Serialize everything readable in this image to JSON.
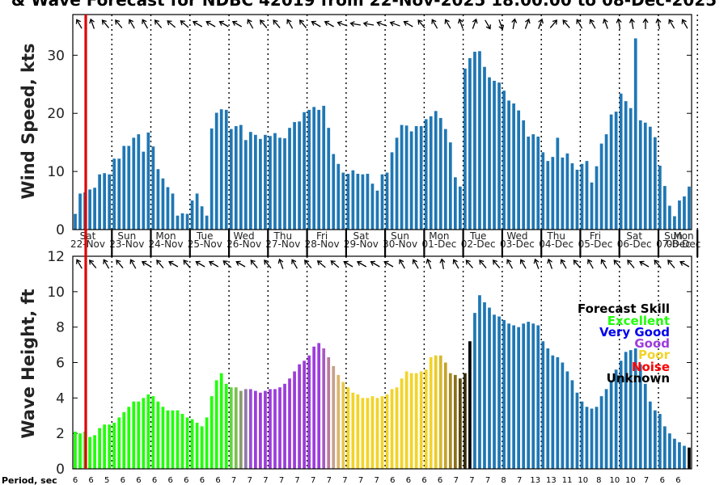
{
  "title": "& Wave Forecast for NDBC 42019 from 22-Nov-2025 18:00:00 to 08-Dec-2025",
  "chart_data": [
    {
      "type": "bar",
      "name": "wind",
      "ylabel": "Wind Speed, kts",
      "ylim": [
        0,
        37
      ],
      "yticks": [
        0,
        10,
        20,
        30
      ],
      "values": [
        2.7,
        6.2,
        6.4,
        6.9,
        7.2,
        9.5,
        9.7,
        9.5,
        12.2,
        12.2,
        14.4,
        14.4,
        15.8,
        16.4,
        13.4,
        16.7,
        14.3,
        10.4,
        8.8,
        7.3,
        6.2,
        2.4,
        2.8,
        2.7,
        5.0,
        6.2,
        4.0,
        2.4,
        17.4,
        20.1,
        20.7,
        20.6,
        17.3,
        17.8,
        18.0,
        15.4,
        16.8,
        16.3,
        15.6,
        16.3,
        16.1,
        16.6,
        15.8,
        15.7,
        17.5,
        18.5,
        18.6,
        20.2,
        20.6,
        21.1,
        20.6,
        21.3,
        17.5,
        13.0,
        11.3,
        9.8,
        9.6,
        10.2,
        9.6,
        9.5,
        9.6,
        7.9,
        6.7,
        9.5,
        9.8,
        13.3,
        15.8,
        18.0,
        17.9,
        16.9,
        17.8,
        17.8,
        19.0,
        19.5,
        20.4,
        19.2,
        17.3,
        15.0,
        9.0,
        7.4,
        27.7,
        29.5,
        30.6,
        30.7,
        28.0,
        26.2,
        25.6,
        25.3,
        23.9,
        22.2,
        21.7,
        20.5,
        18.8,
        16.0,
        16.4,
        16.0,
        13.3,
        11.8,
        12.5,
        15.8,
        12.4,
        13.1,
        11.4,
        10.3,
        11.3,
        11.8,
        8.1,
        10.9,
        14.8,
        16.4,
        19.8,
        20.3,
        23.4,
        22.1,
        20.9,
        32.9,
        18.8,
        18.4,
        17.7,
        15.9,
        11.0,
        7.5,
        4.1,
        2.3,
        5.0,
        5.7,
        7.4
      ]
    },
    {
      "type": "bar",
      "name": "wave",
      "ylabel": "Wave Height, ft",
      "ylim": [
        0,
        12
      ],
      "yticks": [
        0,
        2,
        4,
        6,
        8,
        10,
        12
      ],
      "values": [
        2.1,
        2.0,
        2.1,
        1.8,
        1.9,
        2.3,
        2.5,
        2.5,
        2.6,
        2.9,
        3.2,
        3.5,
        3.8,
        3.8,
        4.0,
        4.2,
        4.1,
        3.8,
        3.5,
        3.3,
        3.3,
        3.3,
        3.1,
        2.9,
        2.8,
        2.6,
        2.4,
        2.9,
        4.1,
        5.0,
        5.4,
        4.8,
        4.6,
        4.6,
        4.4,
        4.5,
        4.5,
        4.4,
        4.3,
        4.4,
        4.5,
        4.5,
        4.6,
        4.8,
        5.1,
        5.5,
        5.9,
        6.1,
        6.4,
        6.9,
        7.1,
        6.8,
        6.3,
        5.8,
        5.3,
        4.9,
        4.6,
        4.3,
        4.2,
        4.0,
        4.0,
        4.1,
        4.0,
        4.1,
        4.2,
        4.5,
        4.6,
        5.1,
        5.5,
        5.4,
        5.4,
        5.5,
        5.6,
        6.3,
        6.4,
        6.4,
        6.0,
        5.4,
        5.3,
        5.1,
        5.4,
        7.2,
        8.8,
        9.8,
        9.4,
        9.1,
        8.7,
        8.6,
        8.4,
        8.2,
        8.1,
        8.0,
        8.2,
        8.3,
        8.2,
        8.1,
        7.2,
        6.8,
        6.4,
        6.3,
        6.0,
        5.5,
        5.0,
        4.3,
        3.8,
        3.5,
        3.4,
        3.5,
        4.1,
        4.5,
        5.0,
        5.6,
        6.1,
        6.6,
        6.7,
        6.8,
        5.9,
        4.8,
        3.8,
        3.3,
        3.1,
        2.4,
        2.0,
        1.7,
        1.5,
        1.3,
        1.2
      ],
      "bar_colors": [
        "#21ff0a",
        "#21ff0a",
        "#21ff0a",
        "#21ff0a",
        "#21ff0a",
        "#21ff0a",
        "#21ff0a",
        "#21ff0a",
        "#21ff0a",
        "#21ff0a",
        "#21ff0a",
        "#21ff0a",
        "#21ff0a",
        "#21ff0a",
        "#21ff0a",
        "#21ff0a",
        "#21ff0a",
        "#21ff0a",
        "#21ff0a",
        "#21ff0a",
        "#21ff0a",
        "#21ff0a",
        "#21ff0a",
        "#21ff0a",
        "#21ff0a",
        "#21ff0a",
        "#21ff0a",
        "#21ff0a",
        "#21ff0a",
        "#21ff0a",
        "#21ff0a",
        "#21ff0a",
        "#5fd640",
        "#7cc04f",
        "#8a9c70",
        "#8f7ba6",
        "#9a4ad6",
        "#9d3cdc",
        "#9d3cdc",
        "#9d3cdc",
        "#9d3cdc",
        "#9d3cdc",
        "#9d3cdc",
        "#9d3cdc",
        "#9d3cdc",
        "#9d3cdc",
        "#9d3cdc",
        "#9d3cdc",
        "#9d3cdc",
        "#9d3cdc",
        "#9d3cdc",
        "#a65bc0",
        "#b87a9e",
        "#c5a08a",
        "#d9b56d",
        "#e8c84a",
        "#f2d428",
        "#f2d428",
        "#f2d428",
        "#f2d428",
        "#f2d428",
        "#f2d428",
        "#f2d428",
        "#f2d428",
        "#f2d428",
        "#f2d428",
        "#f2d428",
        "#f2d428",
        "#f2d428",
        "#f2d428",
        "#f2d428",
        "#f2d428",
        "#f2d428",
        "#f2d428",
        "#e9cc2a",
        "#d7b82b",
        "#c4a42c",
        "#a88a24",
        "#8b7019",
        "#5a480f",
        "#332a06",
        "#000000",
        "#1f77b4",
        "#1f77b4",
        "#1f77b4",
        "#1f77b4",
        "#1f77b4",
        "#1f77b4",
        "#1f77b4",
        "#1f77b4",
        "#1f77b4",
        "#1f77b4",
        "#1f77b4",
        "#1f77b4",
        "#1f77b4",
        "#1f77b4",
        "#1f77b4",
        "#1f77b4",
        "#1f77b4",
        "#1f77b4",
        "#1f77b4",
        "#1f77b4",
        "#1f77b4",
        "#1f77b4",
        "#1f77b4",
        "#1f77b4",
        "#1f77b4",
        "#1f77b4",
        "#1f77b4",
        "#1f77b4",
        "#1f77b4",
        "#1f77b4",
        "#1f77b4",
        "#1f77b4",
        "#1f77b4",
        "#1f77b4",
        "#1f77b4",
        "#1f77b4",
        "#1f77b4",
        "#1f77b4",
        "#1f77b4",
        "#1f77b4",
        "#1f77b4",
        "#1f77b4",
        "#1f77b4",
        "#1f77b4"
      ]
    }
  ],
  "days": [
    {
      "dow": "Sat",
      "date": "22-Nov"
    },
    {
      "dow": "Sun",
      "date": "23-Nov"
    },
    {
      "dow": "Mon",
      "date": "24-Nov"
    },
    {
      "dow": "Tue",
      "date": "25-Nov"
    },
    {
      "dow": "Wed",
      "date": "26-Nov"
    },
    {
      "dow": "Thu",
      "date": "27-Nov"
    },
    {
      "dow": "Fri",
      "date": "28-Nov"
    },
    {
      "dow": "Sat",
      "date": "29-Nov"
    },
    {
      "dow": "Sun",
      "date": "30-Nov"
    },
    {
      "dow": "Mon",
      "date": "01-Dec"
    },
    {
      "dow": "Tue",
      "date": "02-Dec"
    },
    {
      "dow": "Wed",
      "date": "03-Dec"
    },
    {
      "dow": "Thu",
      "date": "04-Dec"
    },
    {
      "dow": "Fri",
      "date": "05-Dec"
    },
    {
      "dow": "Sat",
      "date": "06-Dec"
    },
    {
      "dow": "Sun",
      "date": "07-Dec"
    },
    {
      "dow": "Mon",
      "date": "08-Dec"
    }
  ],
  "period_label": "Period, sec",
  "periods": [
    6,
    6,
    5,
    6,
    6,
    6,
    6,
    6,
    6,
    6,
    7,
    7,
    7,
    7,
    7,
    7,
    7,
    7,
    7,
    7,
    6,
    6,
    6,
    6,
    7,
    7,
    7,
    8,
    7,
    13,
    13,
    11,
    10,
    8,
    10,
    10,
    7,
    6,
    6
  ],
  "wind_arrow_dirs": [
    330,
    340,
    320,
    320,
    330,
    330,
    320,
    310,
    310,
    300,
    300,
    300,
    300,
    330,
    320,
    320,
    330,
    320,
    300,
    300,
    290,
    280,
    280,
    290,
    290,
    300,
    320,
    330,
    330,
    340,
    20,
    150,
    160,
    10,
    20,
    20,
    40,
    320,
    330,
    330,
    340,
    350,
    350,
    0,
    350,
    330,
    330
  ],
  "wave_arrow_dirs": [
    330,
    320,
    330,
    320,
    330,
    300,
    320,
    300,
    320,
    300,
    300,
    310,
    300,
    320,
    320,
    340,
    330,
    320,
    310,
    310,
    300,
    300,
    300,
    300,
    330,
    330,
    340,
    350,
    330,
    320,
    320,
    320,
    330,
    330,
    340,
    340,
    330,
    320,
    330,
    330,
    320,
    320,
    300,
    320,
    320,
    300
  ],
  "legend": {
    "title": "Forecast Skill",
    "items": [
      {
        "label": "Excellent",
        "color": "#21ff0a"
      },
      {
        "label": "Very Good",
        "color": "#0000ee"
      },
      {
        "label": "Good",
        "color": "#9d3cdc"
      },
      {
        "label": "Poor",
        "color": "#f2d428"
      },
      {
        "label": "Noise",
        "color": "#ff0000"
      },
      {
        "label": "Unknown",
        "color": "#000000"
      }
    ]
  },
  "colors": {
    "wind_bar": "#1f77b4",
    "now_line": "#dd0000",
    "frame": "#000000"
  }
}
